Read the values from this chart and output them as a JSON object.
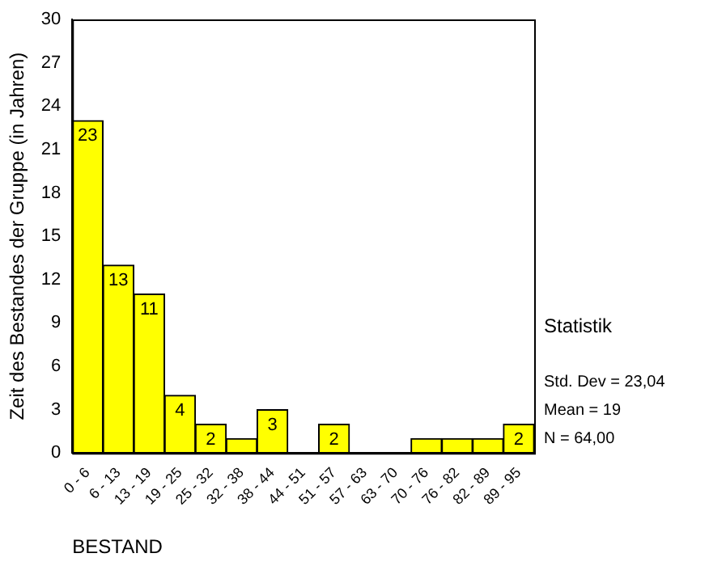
{
  "chart_data": {
    "type": "bar",
    "xlabel": "BESTAND",
    "ylabel": "Zeit des Bestandes der Gruppe (in Jahren)",
    "categories": [
      "0 - 6",
      "6 - 13",
      "13 - 19",
      "19 - 25",
      "25 - 32",
      "32 - 38",
      "38 - 44",
      "44 - 51",
      "51 - 57",
      "57 - 63",
      "63 - 70",
      "70 - 76",
      "76 - 82",
      "82 - 89",
      "89 - 95"
    ],
    "values": [
      23,
      13,
      11,
      4,
      2,
      1,
      3,
      0,
      2,
      0,
      0,
      1,
      1,
      1,
      2
    ],
    "value_labels": [
      "23",
      "13",
      "11",
      "4",
      "2",
      null,
      "3",
      null,
      "2",
      null,
      null,
      null,
      null,
      null,
      "2"
    ],
    "color": "#ffff00",
    "ylim": [
      0,
      30
    ],
    "yticks": [
      0,
      3,
      6,
      9,
      12,
      15,
      18,
      21,
      24,
      27,
      30
    ],
    "grid": false,
    "legend": false,
    "annotations": [
      "Statistik",
      "Std. Dev = 23,04",
      "Mean = 19",
      "N = 64,00"
    ]
  }
}
